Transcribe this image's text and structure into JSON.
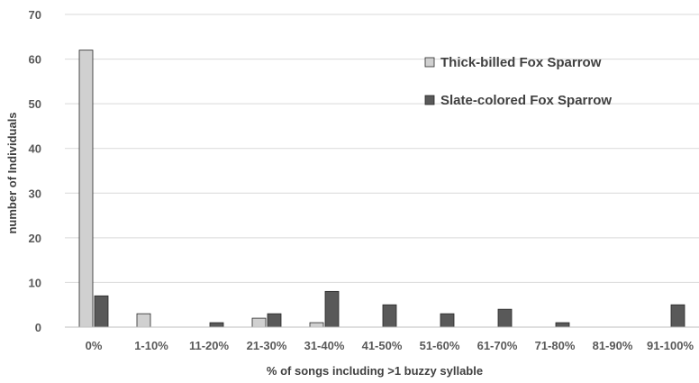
{
  "chart_data": {
    "type": "bar",
    "title": "",
    "xlabel": "% of songs including >1 buzzy syllable",
    "ylabel": "number of Individuals",
    "ylim": [
      0,
      70
    ],
    "yticks": [
      0,
      10,
      20,
      30,
      40,
      50,
      60,
      70
    ],
    "grid": true,
    "legend_position": "top-right",
    "categories": [
      "0%",
      "1-10%",
      "11-20%",
      "21-30%",
      "31-40%",
      "41-50%",
      "51-60%",
      "61-70%",
      "71-80%",
      "81-90%",
      "91-100%"
    ],
    "series": [
      {
        "name": "Thick-billed Fox Sparrow",
        "color": "#d0d0d0",
        "values": [
          62,
          3,
          0,
          2,
          1,
          0,
          0,
          0,
          0,
          0,
          0
        ]
      },
      {
        "name": "Slate-colored Fox Sparrow",
        "color": "#595959",
        "values": [
          7,
          0,
          1,
          3,
          8,
          5,
          3,
          4,
          1,
          0,
          5
        ]
      }
    ]
  }
}
